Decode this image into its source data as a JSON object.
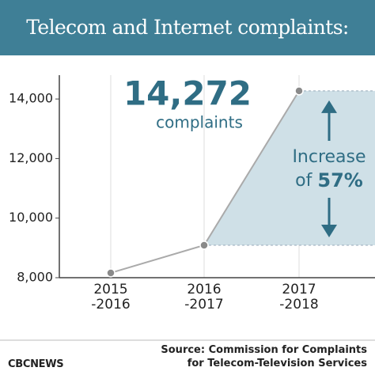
{
  "chart_data": {
    "type": "line",
    "title": "Telecom and Internet complaints:",
    "categories": [
      "2015\n-2016",
      "2016\n-2017",
      "2017\n-2018"
    ],
    "values": [
      8160,
      9090,
      14272
    ],
    "value_labels": [
      null,
      null,
      "14,272"
    ],
    "value_label_caption": "complaints",
    "color": "#8a8a8a",
    "ylim": [
      8000,
      14800
    ],
    "yticks": [
      {
        "value": 8000,
        "label": "8,000"
      },
      {
        "value": 10000,
        "label": "10,000"
      },
      {
        "value": 12000,
        "label": "12,000"
      },
      {
        "value": 14000,
        "label": "14,000"
      }
    ],
    "grid": true,
    "annotation_lines": [
      "Increase",
      "of"
    ],
    "annotation_value": "57%",
    "source": "Source: Commission for Complaints\nfor Telecom-Television Services",
    "logo": "CBCNEWS"
  }
}
